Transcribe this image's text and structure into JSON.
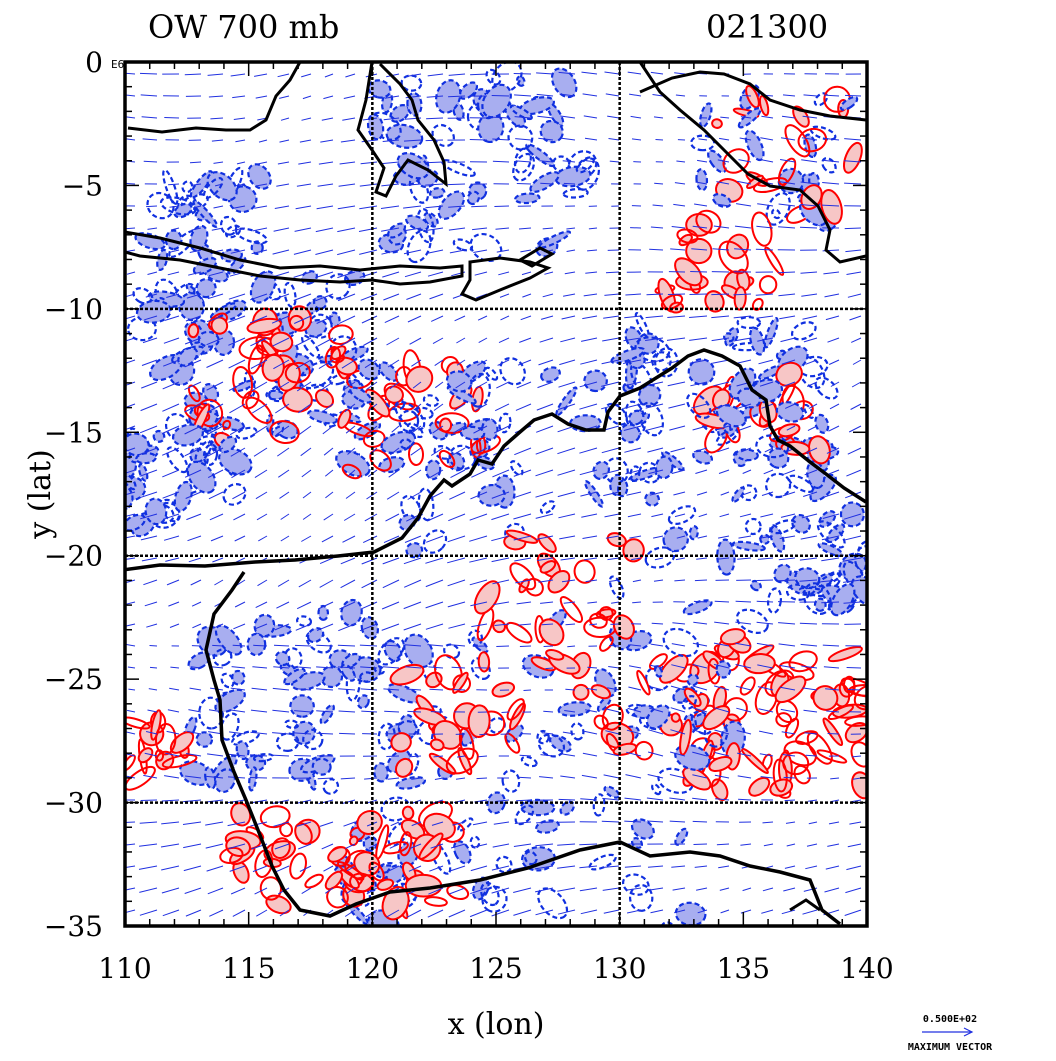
{
  "header": {
    "title_left": "OW 700 mb",
    "title_right": "021300"
  },
  "axes": {
    "xlabel": "x (lon)",
    "ylabel": "y (lat)",
    "x_range": [
      110,
      140
    ],
    "y_range": [
      -35,
      0
    ],
    "x_ticks": [
      "110",
      "115",
      "120",
      "125",
      "130",
      "135",
      "140"
    ],
    "y_ticks": [
      "0",
      "-5",
      "-10",
      "-15",
      "-20",
      "-25",
      "-30",
      "-35"
    ],
    "corner_mark": "E6",
    "grid_lines_x": [
      120,
      130
    ],
    "grid_lines_y": [
      -10,
      -20,
      -30
    ]
  },
  "legend": {
    "vector_value": "0.500E+02",
    "vector_label": "MAXIMUM VECTOR"
  },
  "colors": {
    "positive_contour": "#ff0000",
    "positive_fill": "#f7c6c6",
    "negative_contour": "#1030e0",
    "negative_fill": "#a8aef0",
    "vector": "#2030e0",
    "coast": "#000000"
  }
}
